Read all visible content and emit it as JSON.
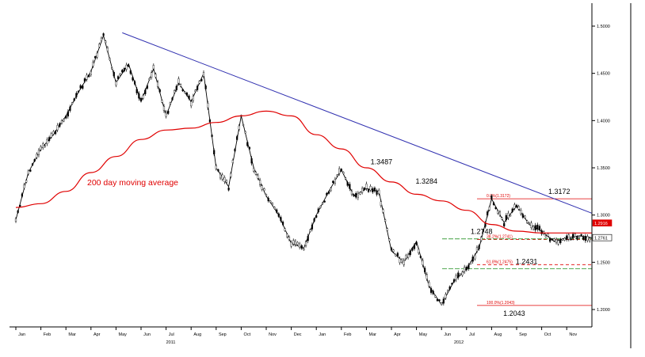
{
  "chart_data": {
    "type": "line",
    "title": "",
    "xlabel": "",
    "ylabel": "",
    "x_tick_labels": [
      "Jan",
      "Feb",
      "Mar",
      "Apr",
      "May",
      "Jun",
      "Jul",
      "Aug",
      "Sep",
      "Oct",
      "Nov",
      "Dec",
      "Jan",
      "Feb",
      "Mar",
      "Apr",
      "May",
      "Jun",
      "Jul",
      "Aug",
      "Sep",
      "Oct",
      "Nov"
    ],
    "year_labels": [
      {
        "label": "2011",
        "month_index": 6
      },
      {
        "label": "2012",
        "month_index": 17.5
      }
    ],
    "ylim": [
      1.19,
      1.525
    ],
    "y_ticks": [
      1.2,
      1.25,
      1.3,
      1.35,
      1.4,
      1.45,
      1.5
    ],
    "y_tick_labels": [
      "1.2000",
      "1.2500",
      "1.3000",
      "1.3500",
      "1.4000",
      "1.4500",
      "1.5000"
    ],
    "price_markers": [
      {
        "label": "1.2916",
        "value": 1.2916,
        "color": "#e00000"
      },
      {
        "label": "1.2761",
        "value": 1.2761,
        "color": "#000000"
      }
    ],
    "series": [
      {
        "name": "",
        "style": "candlestick",
        "color": "#000000",
        "x": [
          0,
          0.5,
          1,
          1.5,
          2,
          2.5,
          3,
          3.5,
          4,
          4.5,
          5,
          5.5,
          6,
          6.5,
          7,
          7.5,
          8,
          8.5,
          9,
          9.5,
          10,
          10.5,
          11,
          11.5,
          12,
          12.5,
          13,
          13.5,
          14,
          14.5,
          15,
          15.5,
          16,
          16.5,
          17,
          17.5,
          18,
          18.5,
          19,
          19.5,
          20,
          20.5,
          21,
          21.5,
          22,
          22.5,
          23
        ],
        "values": [
          1.295,
          1.345,
          1.37,
          1.385,
          1.405,
          1.43,
          1.452,
          1.49,
          1.44,
          1.46,
          1.42,
          1.455,
          1.405,
          1.44,
          1.42,
          1.45,
          1.35,
          1.33,
          1.405,
          1.35,
          1.32,
          1.3,
          1.27,
          1.265,
          1.3,
          1.325,
          1.348,
          1.32,
          1.328,
          1.325,
          1.262,
          1.25,
          1.272,
          1.225,
          1.205,
          1.23,
          1.243,
          1.265,
          1.3172,
          1.292,
          1.31,
          1.29,
          1.283,
          1.272,
          1.276,
          1.278,
          1.276
        ]
      },
      {
        "name": "200 day moving average",
        "style": "line",
        "color": "#e00000",
        "x": [
          0,
          1,
          2,
          3,
          4,
          5,
          6,
          7,
          8,
          9,
          10,
          11,
          12,
          13,
          14,
          15,
          16,
          17,
          18,
          19,
          20,
          21,
          22,
          23
        ],
        "values": [
          1.308,
          1.312,
          1.325,
          1.345,
          1.362,
          1.38,
          1.39,
          1.392,
          1.398,
          1.405,
          1.41,
          1.405,
          1.385,
          1.37,
          1.35,
          1.335,
          1.322,
          1.315,
          1.305,
          1.29,
          1.283,
          1.281,
          1.281,
          1.281
        ]
      },
      {
        "name": "",
        "style": "trendline",
        "color": "#3030b0",
        "x": [
          4.25,
          23
        ],
        "values": [
          1.493,
          1.302
        ]
      }
    ],
    "annotations": [
      {
        "text": "1.3487",
        "x": 14.6,
        "y": 1.3487
      },
      {
        "text": "1.3284",
        "x": 16.4,
        "y": 1.3284
      },
      {
        "text": "1.2748",
        "x": 18.6,
        "y": 1.2748
      },
      {
        "text": "1.2431",
        "x": 20.4,
        "y": 1.2431
      },
      {
        "text": "1.2043",
        "x": 19.9,
        "y": 1.2043
      },
      {
        "text": "1.3172",
        "x": 21.7,
        "y": 1.3172
      }
    ],
    "fibonacci": [
      {
        "text": "0.0%(1.3172)",
        "value": 1.3172,
        "color": "#e00000",
        "dash": false
      },
      {
        "text": "38.2%(1.2741)",
        "value": 1.2741,
        "color": "#e00000",
        "dash": true
      },
      {
        "text": "61.8%(1.2475)",
        "value": 1.2475,
        "color": "#e00000",
        "dash": true
      },
      {
        "text": "100.0%(1.2043)",
        "value": 1.2043,
        "color": "#e00000",
        "dash": false
      }
    ],
    "support_lines": [
      {
        "value": 1.2748,
        "color": "#40a040"
      },
      {
        "value": 1.2431,
        "color": "#40a040"
      }
    ],
    "legend_label": "200 day moving average",
    "grid": false
  }
}
